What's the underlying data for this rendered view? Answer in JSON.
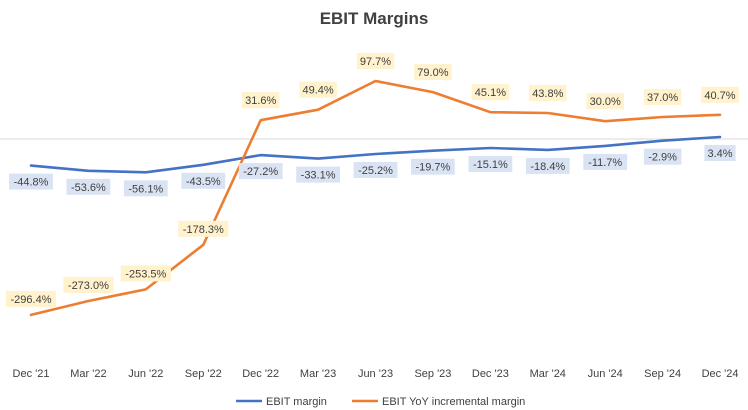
{
  "chart_data": {
    "type": "line",
    "title": "EBIT Margins",
    "xlabel": "",
    "ylabel": "",
    "grid": false,
    "legend_position": "bottom",
    "categories": [
      "Dec '21",
      "Mar '22",
      "Jun '22",
      "Sep '22",
      "Dec '22",
      "Mar '23",
      "Jun '23",
      "Sep '23",
      "Dec '23",
      "Mar '24",
      "Jun '24",
      "Sep '24",
      "Dec '24"
    ],
    "series": [
      {
        "name": "EBIT margin",
        "color": "#4472C4",
        "label_bg": "#DAE3F3",
        "values": [
          -44.8,
          -53.6,
          -56.1,
          -43.5,
          -27.2,
          -33.1,
          -25.2,
          -19.7,
          -15.1,
          -18.4,
          -11.7,
          -2.9,
          3.4
        ],
        "labels": [
          "-44.8%",
          "-53.6%",
          "-56.1%",
          "-43.5%",
          "-27.2%",
          "-33.1%",
          "-25.2%",
          "-19.7%",
          "-15.1%",
          "-18.4%",
          "-11.7%",
          "-2.9%",
          "3.4%"
        ]
      },
      {
        "name": "EBIT YoY incremental margin",
        "color": "#ED7D31",
        "label_bg": "#FFF2CC",
        "values": [
          -296.4,
          -273.0,
          -253.5,
          -178.3,
          31.6,
          49.4,
          97.7,
          79.0,
          45.1,
          43.8,
          30.0,
          37.0,
          40.7
        ],
        "labels": [
          "-296.4%",
          "-273.0%",
          "-253.5%",
          "-178.3%",
          "31.6%",
          "49.4%",
          "97.7%",
          "79.0%",
          "45.1%",
          "43.8%",
          "30.0%",
          "37.0%",
          "40.7%"
        ]
      }
    ]
  }
}
